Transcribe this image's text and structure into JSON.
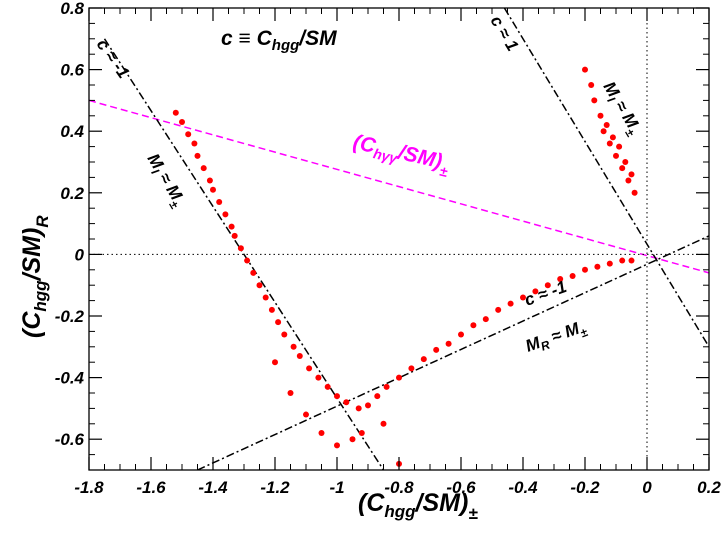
{
  "chart_data": {
    "type": "scatter",
    "title": "",
    "xlabel": "(Chgg/SM)±",
    "ylabel": "(Chgg/SM)R",
    "xlim": [
      -1.8,
      0.2
    ],
    "ylim": [
      -0.7,
      0.8
    ],
    "x_ticks": [
      "-1.8",
      "-1.6",
      "-1.4",
      "-1.2",
      "-1",
      "-0.8",
      "-0.6",
      "-0.4",
      "-0.2",
      "0",
      "0.2"
    ],
    "y_ticks": [
      "0.8",
      "0.6",
      "0.4",
      "0.2",
      "0",
      "-0.2",
      "-0.4",
      "-0.6"
    ],
    "grid": false,
    "colors": {
      "points": "#ff0000",
      "higgs_photon_line": "#ff00ff",
      "reference_lines": "#000000"
    },
    "series": [
      {
        "marker": "dot",
        "color": "#ff0000",
        "points": [
          [
            -1.52,
            0.46
          ],
          [
            -1.5,
            0.43
          ],
          [
            -1.48,
            0.39
          ],
          [
            -1.46,
            0.36
          ],
          [
            -1.45,
            0.32
          ],
          [
            -1.43,
            0.28
          ],
          [
            -1.41,
            0.24
          ],
          [
            -1.4,
            0.21
          ],
          [
            -1.38,
            0.17
          ],
          [
            -1.36,
            0.13
          ],
          [
            -1.34,
            0.09
          ],
          [
            -1.33,
            0.06
          ],
          [
            -1.31,
            0.02
          ],
          [
            -1.29,
            -0.02
          ],
          [
            -1.27,
            -0.06
          ],
          [
            -1.25,
            -0.1
          ],
          [
            -1.23,
            -0.14
          ],
          [
            -1.21,
            -0.18
          ],
          [
            -1.19,
            -0.22
          ],
          [
            -1.17,
            -0.26
          ],
          [
            -1.14,
            -0.3
          ],
          [
            -1.12,
            -0.33
          ],
          [
            -1.09,
            -0.37
          ],
          [
            -1.06,
            -0.4
          ],
          [
            -1.03,
            -0.43
          ],
          [
            -1.0,
            -0.46
          ],
          [
            -0.97,
            -0.48
          ],
          [
            -0.93,
            -0.5
          ],
          [
            -0.9,
            -0.49
          ],
          [
            -0.87,
            -0.46
          ],
          [
            -0.84,
            -0.43
          ],
          [
            -0.8,
            -0.4
          ],
          [
            -0.76,
            -0.37
          ],
          [
            -0.72,
            -0.34
          ],
          [
            -0.68,
            -0.31
          ],
          [
            -0.64,
            -0.29
          ],
          [
            -0.6,
            -0.26
          ],
          [
            -0.56,
            -0.23
          ],
          [
            -0.52,
            -0.21
          ],
          [
            -0.48,
            -0.18
          ],
          [
            -0.44,
            -0.16
          ],
          [
            -0.4,
            -0.14
          ],
          [
            -0.36,
            -0.12
          ],
          [
            -0.32,
            -0.1
          ],
          [
            -0.28,
            -0.08
          ],
          [
            -0.24,
            -0.07
          ],
          [
            -0.2,
            -0.05
          ],
          [
            -0.16,
            -0.04
          ],
          [
            -0.12,
            -0.03
          ],
          [
            -0.08,
            -0.02
          ],
          [
            -0.05,
            -0.02
          ],
          [
            -1.05,
            -0.58
          ],
          [
            -1.0,
            -0.62
          ],
          [
            -0.95,
            -0.6
          ],
          [
            -1.1,
            -0.52
          ],
          [
            -0.85,
            -0.55
          ],
          [
            -1.2,
            -0.35
          ],
          [
            -1.15,
            -0.45
          ],
          [
            -0.8,
            -0.68
          ],
          [
            -0.92,
            -0.58
          ],
          [
            -0.2,
            0.6
          ],
          [
            -0.18,
            0.55
          ],
          [
            -0.17,
            0.5
          ],
          [
            -0.15,
            0.45
          ],
          [
            -0.14,
            0.4
          ],
          [
            -0.12,
            0.36
          ],
          [
            -0.1,
            0.32
          ],
          [
            -0.08,
            0.28
          ],
          [
            -0.06,
            0.24
          ],
          [
            -0.04,
            0.2
          ],
          [
            -0.13,
            0.42
          ],
          [
            -0.09,
            0.35
          ],
          [
            -0.07,
            0.3
          ],
          [
            -0.05,
            0.26
          ],
          [
            -0.11,
            0.38
          ]
        ]
      }
    ],
    "lines": [
      {
        "label": "(Chγγ/SM)±",
        "style": "dashed",
        "color": "#ff00ff",
        "from": [
          -1.8,
          0.5
        ],
        "to": [
          0.2,
          -0.06
        ]
      },
      {
        "label": "c ≈ 1",
        "style": "dash-dot",
        "color": "#000000",
        "from": [
          -0.46,
          0.8
        ],
        "to": [
          0.2,
          -0.3
        ]
      },
      {
        "label": "c ≈ -1",
        "style": "dash-dot",
        "color": "#000000",
        "from": [
          -1.75,
          0.7
        ],
        "to": [
          -0.85,
          -0.7
        ]
      },
      {
        "label": "",
        "style": "dash-dot",
        "color": "#000000",
        "from": [
          -1.45,
          -0.7
        ],
        "to": [
          0.2,
          0.06
        ]
      },
      {
        "label": "",
        "style": "dotted",
        "color": "#000000",
        "from": [
          -1.8,
          0.0
        ],
        "to": [
          0.2,
          0.0
        ]
      },
      {
        "label": "",
        "style": "dotted",
        "color": "#000000",
        "from": [
          0.0,
          -0.7
        ],
        "to": [
          0.0,
          0.8
        ]
      }
    ],
    "annotations": {
      "definition": "c ≡ Chgg/SM",
      "c_plus_one": "c ≈ 1",
      "c_minus_one_upper": "c ≈ -1",
      "c_minus_one_lower": "c ≈ -1",
      "mi_upper": "MI ≈ M±",
      "mi_left": "MI ≈ M±",
      "mr_lower": "MR ≈ M±"
    }
  }
}
